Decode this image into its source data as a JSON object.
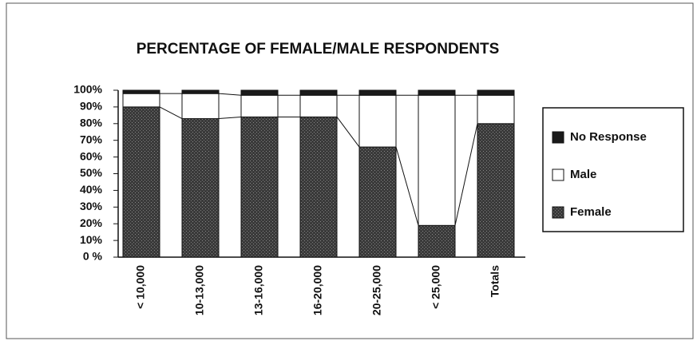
{
  "chart_data": {
    "type": "stacked_bar",
    "title": "PERCENTAGE OF FEMALE/MALE RESPONDENTS",
    "categories": [
      "< 10,000",
      "10-13,000",
      "13-16,000",
      "16-20,000",
      "20-25,000",
      "< 25,000",
      "Totals"
    ],
    "series": [
      {
        "name": "Female",
        "color": "#3a3a3a",
        "values": [
          90,
          83,
          84,
          84,
          66,
          19,
          80
        ]
      },
      {
        "name": "Male",
        "color": "#ffffff",
        "values": [
          8,
          15,
          13,
          13,
          31,
          78,
          17
        ]
      },
      {
        "name": "No Response",
        "color": "#1a1a1a",
        "values": [
          2,
          2,
          3,
          3,
          3,
          3,
          3
        ]
      }
    ],
    "ylim": [
      0,
      100
    ],
    "yticks": [
      {
        "value": 0,
        "label": "0 %"
      },
      {
        "value": 10,
        "label": "10%"
      },
      {
        "value": 20,
        "label": "20%"
      },
      {
        "value": 30,
        "label": "30%"
      },
      {
        "value": 40,
        "label": "40%"
      },
      {
        "value": 50,
        "label": "50%"
      },
      {
        "value": 60,
        "label": "60%"
      },
      {
        "value": 70,
        "label": "70%"
      },
      {
        "value": 80,
        "label": "80%"
      },
      {
        "value": 90,
        "label": "90%"
      },
      {
        "value": 100,
        "label": "100%"
      }
    ],
    "legend": "right"
  }
}
